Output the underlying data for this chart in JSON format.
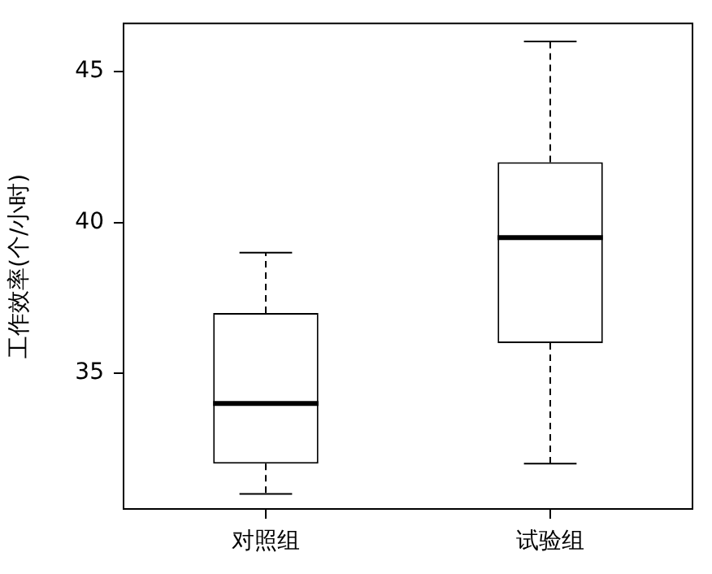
{
  "chart_data": {
    "type": "box",
    "ylabel": "工作效率(个/小时)",
    "categories": [
      "对照组",
      "试验组"
    ],
    "boxes": [
      {
        "low": 31,
        "q1": 32,
        "median": 34,
        "q3": 37,
        "high": 39
      },
      {
        "low": 32,
        "q1": 36,
        "median": 39.5,
        "q3": 42,
        "high": 46
      }
    ],
    "ylim": [
      30.5,
      46.6
    ],
    "yticks": [
      35,
      40,
      45
    ],
    "grid": false,
    "legend": false
  }
}
